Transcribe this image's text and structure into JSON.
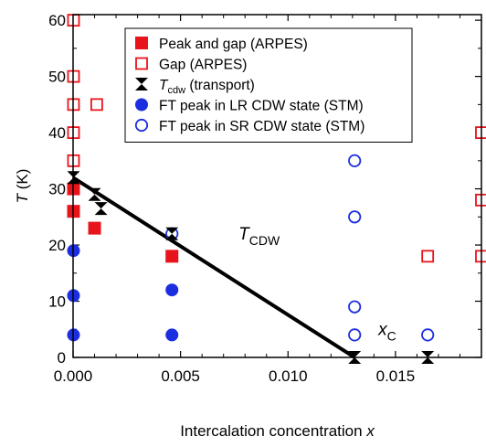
{
  "chart_data": {
    "type": "scatter",
    "xlabel": "Intercalation concentration x",
    "ylabel": "T (K)",
    "xlim": [
      0,
      0.019
    ],
    "ylim": [
      0,
      61
    ],
    "xticks": [
      0.0,
      0.005,
      0.01,
      0.015
    ],
    "xtick_labels": [
      "0.000",
      "0.005",
      "0.010",
      "0.015"
    ],
    "yticks": [
      0,
      10,
      20,
      30,
      40,
      50,
      60
    ],
    "ytick_labels": [
      "0",
      "10",
      "20",
      "30",
      "40",
      "50",
      "60"
    ],
    "legend_position": "top-right",
    "series": [
      {
        "name": "Peak and gap (ARPES)",
        "marker": "filled-square",
        "color": "#e8141c",
        "x": [
          2e-05,
          2e-05,
          0.001,
          0.0046
        ],
        "y": [
          30,
          26,
          23,
          18
        ]
      },
      {
        "name": "Gap (ARPES)",
        "marker": "open-square",
        "color": "#e8141c",
        "x": [
          2e-05,
          2e-05,
          2e-05,
          2e-05,
          2e-05,
          0.0011,
          0.0165,
          0.019,
          0.019,
          0.019
        ],
        "y": [
          60,
          50,
          45,
          40,
          35,
          45,
          18,
          40,
          28,
          18
        ]
      },
      {
        "name": "T_cdw (transport)",
        "marker": "bowtie",
        "color": "#000000",
        "x": [
          2e-05,
          0.001,
          0.0013,
          0.0046,
          0.0131,
          0.0165
        ],
        "y": [
          32,
          29,
          26.5,
          22,
          0,
          0
        ]
      },
      {
        "name": "FT peak in LR CDW state (STM)",
        "marker": "filled-circle",
        "color": "#1c2fe0",
        "x": [
          2e-05,
          2e-05,
          2e-05,
          0.0046,
          0.0046
        ],
        "y": [
          19,
          11,
          4,
          12,
          4
        ]
      },
      {
        "name": "FT peak in SR CDW state (STM)",
        "marker": "open-circle",
        "color": "#1c2fe0",
        "x": [
          0.0046,
          0.0131,
          0.0131,
          0.0131,
          0.0131,
          0.0165
        ],
        "y": [
          22,
          35,
          25,
          9,
          4,
          4
        ]
      }
    ],
    "trend_line": {
      "color": "#000000",
      "x": [
        0.0,
        0.0131
      ],
      "y": [
        32,
        0
      ]
    },
    "annotations": [
      {
        "main": "T",
        "sub": "CDW",
        "x": 0.0077,
        "y": 21
      },
      {
        "main": "x",
        "sub": "C",
        "x": 0.0142,
        "y": 4
      }
    ]
  }
}
